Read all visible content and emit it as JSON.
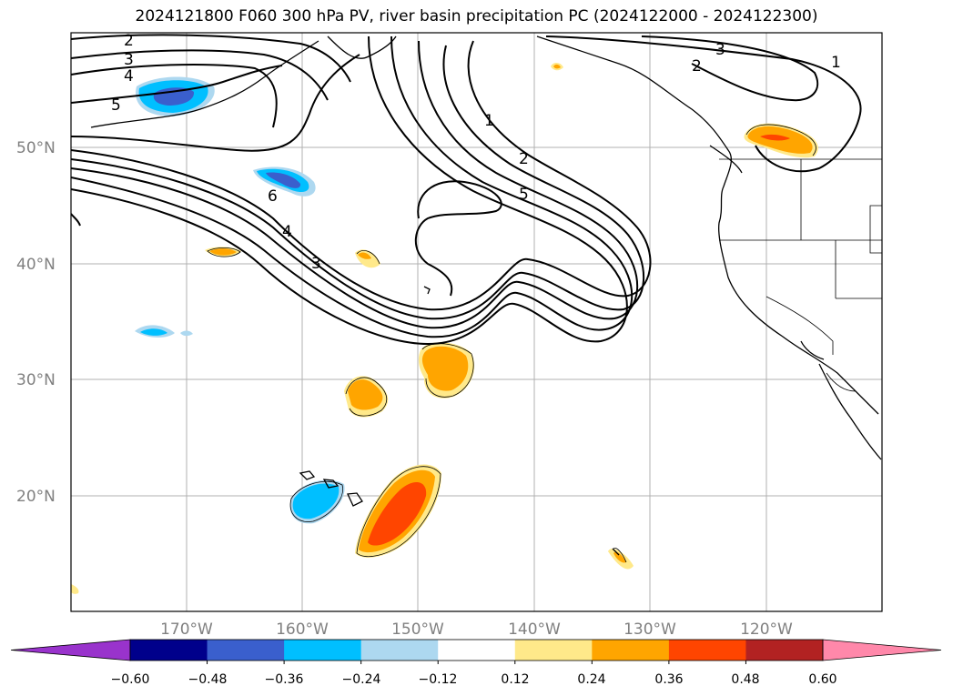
{
  "title": "2024121800 F060 300 hPa PV, river basin precipitation PC (2024122000 - 2024122300)",
  "map": {
    "lat_ticks": [
      "50°N",
      "40°N",
      "30°N",
      "20°N"
    ],
    "lon_ticks": [
      "170°W",
      "160°W",
      "150°W",
      "140°W",
      "130°W",
      "120°W"
    ],
    "pv_contour_labels": [
      "2",
      "3",
      "4",
      "5",
      "6",
      "4",
      "3",
      "1",
      "2",
      "5",
      "3",
      "2",
      "1"
    ]
  },
  "colorbar": {
    "tick_labels": [
      "−0.60",
      "−0.48",
      "−0.36",
      "−0.24",
      "−0.12",
      "0.12",
      "0.24",
      "0.36",
      "0.48",
      "0.60"
    ],
    "colors": [
      "#9933cc",
      "#00008b",
      "#3a5fcd",
      "#00bfff",
      "#add8f0",
      "#ffffff",
      "#ffe98a",
      "#ffa500",
      "#ff4500",
      "#b22222",
      "#ff88aa"
    ]
  }
}
